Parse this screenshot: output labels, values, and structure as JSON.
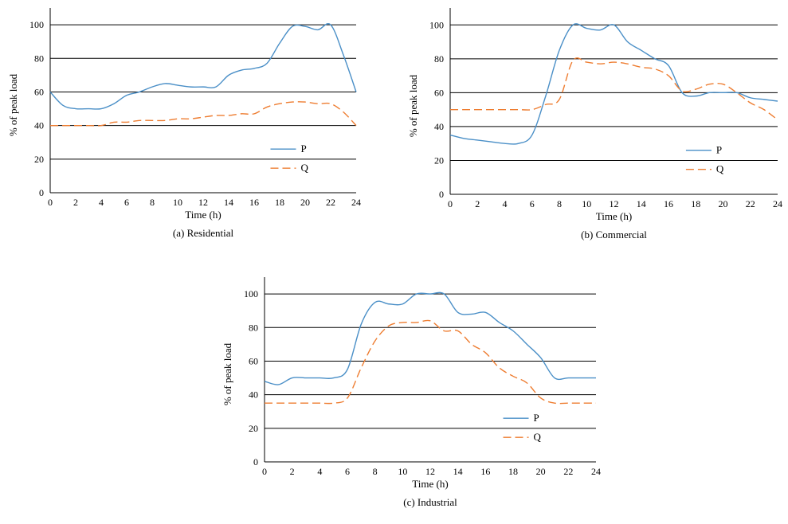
{
  "colors": {
    "P": "#4a8fc7",
    "Q": "#ee7d31",
    "grid": "#000000"
  },
  "chart_data": [
    {
      "type": "line",
      "caption": "(a) Residential",
      "xlabel": "Time (h)",
      "ylabel": "% of peak load",
      "xlim": [
        0,
        24
      ],
      "ylim": [
        0,
        110
      ],
      "xticks": [
        0,
        2,
        4,
        6,
        8,
        10,
        12,
        14,
        16,
        18,
        20,
        22,
        24
      ],
      "yticks": [
        0,
        20,
        40,
        60,
        80,
        100
      ],
      "grid": "horizontal",
      "legend_position": "bottom-right",
      "series": [
        {
          "name": "P",
          "style": "solid",
          "x": [
            0,
            1,
            2,
            3,
            4,
            5,
            6,
            7,
            8,
            9,
            10,
            11,
            12,
            13,
            14,
            15,
            16,
            17,
            18,
            19,
            20,
            21,
            22,
            23,
            24
          ],
          "y": [
            60,
            52,
            50,
            50,
            50,
            53,
            58,
            60,
            63,
            65,
            64,
            63,
            63,
            63,
            70,
            73,
            74,
            77,
            89,
            99,
            99,
            97,
            100,
            82,
            60
          ]
        },
        {
          "name": "Q",
          "style": "dashed",
          "x": [
            0,
            1,
            2,
            3,
            4,
            5,
            6,
            7,
            8,
            9,
            10,
            11,
            12,
            13,
            14,
            15,
            16,
            17,
            18,
            19,
            20,
            21,
            22,
            23,
            24
          ],
          "y": [
            40,
            40,
            40,
            40,
            40,
            42,
            42,
            43,
            43,
            43,
            44,
            44,
            45,
            46,
            46,
            47,
            47,
            51,
            53,
            54,
            54,
            53,
            53,
            48,
            40
          ]
        }
      ]
    },
    {
      "type": "line",
      "caption": "(b) Commercial",
      "xlabel": "Time (h)",
      "ylabel": "% of peak load",
      "xlim": [
        0,
        24
      ],
      "ylim": [
        0,
        110
      ],
      "xticks": [
        0,
        2,
        4,
        6,
        8,
        10,
        12,
        14,
        16,
        18,
        20,
        22,
        24
      ],
      "yticks": [
        0,
        20,
        40,
        60,
        80,
        100
      ],
      "grid": "horizontal",
      "legend_position": "bottom-right",
      "series": [
        {
          "name": "P",
          "style": "solid",
          "x": [
            0,
            1,
            2,
            3,
            4,
            5,
            6,
            7,
            8,
            9,
            10,
            11,
            12,
            13,
            14,
            15,
            16,
            17,
            18,
            19,
            20,
            21,
            22,
            23,
            24
          ],
          "y": [
            35,
            33,
            32,
            31,
            30,
            30,
            35,
            58,
            85,
            100,
            98,
            97,
            100,
            90,
            85,
            80,
            76,
            60,
            58,
            60,
            60,
            60,
            57,
            56,
            55
          ]
        },
        {
          "name": "Q",
          "style": "dashed",
          "x": [
            0,
            1,
            2,
            3,
            4,
            5,
            6,
            7,
            8,
            9,
            10,
            11,
            12,
            13,
            14,
            15,
            16,
            17,
            18,
            19,
            20,
            21,
            22,
            23,
            24
          ],
          "y": [
            50,
            50,
            50,
            50,
            50,
            50,
            50,
            53,
            56,
            79,
            78,
            77,
            78,
            77,
            75,
            74,
            70,
            61,
            62,
            65,
            65,
            60,
            54,
            50,
            44
          ]
        }
      ]
    },
    {
      "type": "line",
      "caption": "(c) Industrial",
      "xlabel": "Time (h)",
      "ylabel": "% of peak load",
      "xlim": [
        0,
        24
      ],
      "ylim": [
        0,
        110
      ],
      "xticks": [
        0,
        2,
        4,
        6,
        8,
        10,
        12,
        14,
        16,
        18,
        20,
        22,
        24
      ],
      "yticks": [
        0,
        20,
        40,
        60,
        80,
        100
      ],
      "grid": "horizontal",
      "legend_position": "bottom-right",
      "series": [
        {
          "name": "P",
          "style": "solid",
          "x": [
            0,
            1,
            2,
            3,
            4,
            5,
            6,
            7,
            8,
            9,
            10,
            11,
            12,
            13,
            14,
            15,
            16,
            17,
            18,
            19,
            20,
            21,
            22,
            23,
            24
          ],
          "y": [
            48,
            46,
            50,
            50,
            50,
            50,
            55,
            82,
            95,
            94,
            94,
            100,
            100,
            100,
            89,
            88,
            89,
            83,
            78,
            70,
            62,
            50,
            50,
            50,
            50
          ]
        },
        {
          "name": "Q",
          "style": "dashed",
          "x": [
            0,
            1,
            2,
            3,
            4,
            5,
            6,
            7,
            8,
            9,
            10,
            11,
            12,
            13,
            14,
            15,
            16,
            17,
            18,
            19,
            20,
            21,
            22,
            23,
            24
          ],
          "y": [
            35,
            35,
            35,
            35,
            35,
            35,
            38,
            56,
            72,
            81,
            83,
            83,
            84,
            78,
            78,
            70,
            65,
            56,
            51,
            47,
            38,
            35,
            35,
            35,
            35
          ]
        }
      ]
    }
  ]
}
